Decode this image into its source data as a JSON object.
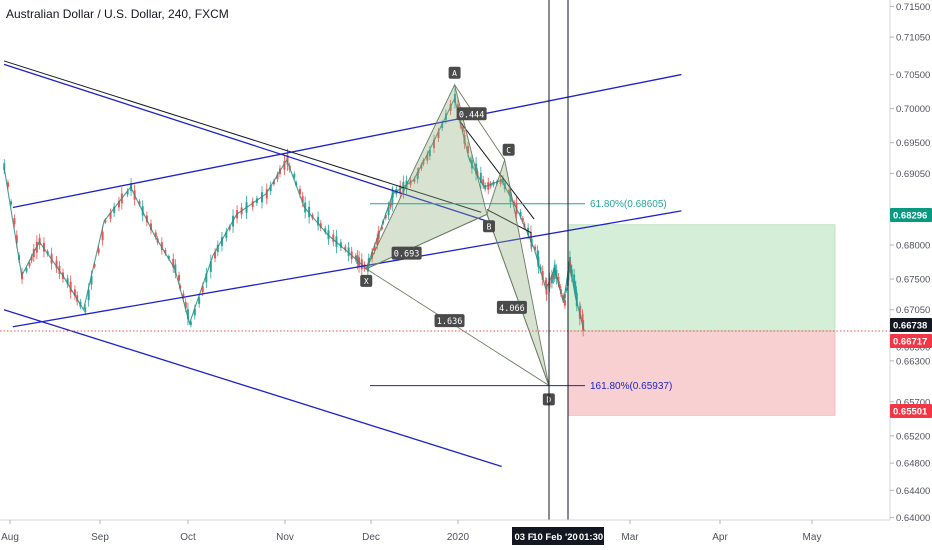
{
  "title": "Australian Dollar / U.S. Dollar, 240, FXCM",
  "chart_data": {
    "type": "line",
    "symbol": "AUD/USD",
    "ylim": [
      0.64,
      0.715
    ],
    "y_ticks": [
      "0.71500",
      "0.71050",
      "0.70500",
      "0.70000",
      "0.69500",
      "0.69050",
      "0.68500",
      "0.68000",
      "0.67500",
      "0.67050",
      "0.66500",
      "0.66300",
      "0.65700",
      "0.65200",
      "0.64800",
      "0.64400",
      "0.64000"
    ],
    "x_ticks": [
      "Aug",
      "Sep",
      "Oct",
      "Nov",
      "Dec",
      "2020",
      "Feb",
      "Mar",
      "Apr",
      "May"
    ],
    "price_series": {
      "name": "",
      "x": [
        "2019-07-31",
        "2019-08-06",
        "2019-08-12",
        "2019-08-20",
        "2019-08-27",
        "2019-09-03",
        "2019-09-12",
        "2019-09-20",
        "2019-09-27",
        "2019-10-02",
        "2019-10-10",
        "2019-10-18",
        "2019-10-28",
        "2019-11-04",
        "2019-11-10",
        "2019-11-18",
        "2019-11-26",
        "2019-12-01",
        "2019-12-06",
        "2019-12-10",
        "2019-12-17",
        "2019-12-22",
        "2019-12-31",
        "2020-01-05",
        "2020-01-10",
        "2020-01-16",
        "2020-01-22",
        "2020-01-27",
        "2020-01-31",
        "2020-02-03",
        "2020-02-06",
        "2020-02-08",
        "2020-02-10",
        "2020-02-13"
      ],
      "values": [
        0.6915,
        0.6755,
        0.6805,
        0.6755,
        0.6705,
        0.6835,
        0.6885,
        0.6815,
        0.6765,
        0.6685,
        0.6785,
        0.6845,
        0.6875,
        0.6925,
        0.6855,
        0.6815,
        0.6785,
        0.6765,
        0.6825,
        0.6875,
        0.6895,
        0.6935,
        0.7015,
        0.6925,
        0.6885,
        0.6895,
        0.6845,
        0.6795,
        0.6735,
        0.6765,
        0.6715,
        0.6775,
        0.6725,
        0.6674
      ]
    },
    "lines": [
      {
        "color": "#1e22c8",
        "from": [
          "2019-07-31",
          0.7065
        ],
        "to": [
          "2020-01-11",
          0.6835
        ]
      },
      {
        "color": "#1e22c8",
        "from": [
          "2019-08-03",
          0.6855
        ],
        "to": [
          "2020-03-17",
          0.705
        ]
      },
      {
        "color": "#1e22c8",
        "from": [
          "2019-08-03",
          0.668
        ],
        "to": [
          "2020-03-17",
          0.685
        ]
      },
      {
        "color": "#1e22c8",
        "from": [
          "2019-07-31",
          0.6705
        ],
        "to": [
          "2020-01-16",
          0.6475
        ]
      }
    ],
    "harmonic_pattern": {
      "points": [
        {
          "label": "X",
          "x": "2019-12-01",
          "y": 0.6765
        },
        {
          "label": "A",
          "x": "2019-12-31",
          "y": 0.7035
        },
        {
          "label": "B",
          "x": "2020-01-11",
          "y": 0.6845
        },
        {
          "label": "C",
          "x": "2020-01-17",
          "y": 0.6925
        },
        {
          "label": "D",
          "x": "2020-02-01",
          "y": 0.6594
        }
      ],
      "ratios": [
        "0.444",
        "0.693",
        "4.066",
        "1.636"
      ]
    },
    "fib_levels": [
      {
        "label": "61.80%(0.68605)",
        "value": 0.68605,
        "color": "#26a69a"
      },
      {
        "label": "161.80%(0.65937)",
        "value": 0.65937,
        "color": "#1e22c8"
      }
    ],
    "position": {
      "entry": 0.66738,
      "target": 0.68296,
      "stop": 0.65501,
      "profit_color": "#d4eed7",
      "loss_color": "#f9d0d2"
    },
    "price_labels": [
      {
        "text": "0.68296",
        "value": 0.68296,
        "color": "#089981"
      },
      {
        "text": "0.66738",
        "value": 0.66738,
        "color": "#131722"
      },
      {
        "text": "0.66717",
        "value": 0.66717,
        "color": "#f23645"
      },
      {
        "text": "0.65501",
        "value": 0.65501,
        "color": "#f23645"
      }
    ],
    "vertical_markers": [
      "03 F",
      "10 Feb '20",
      "01:30"
    ],
    "grid": false
  }
}
